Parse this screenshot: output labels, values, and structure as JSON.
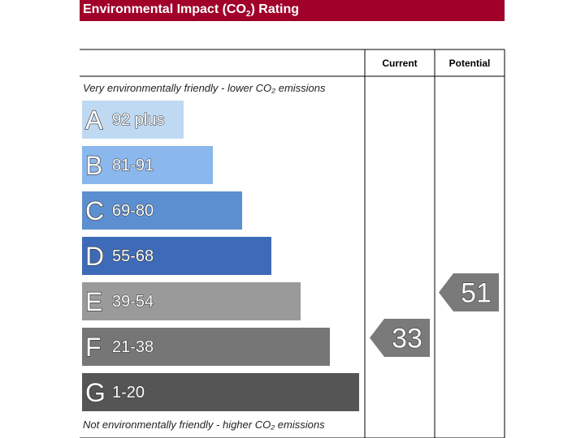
{
  "title": {
    "prefix": "Environmental Impact (CO",
    "sub": "2",
    "suffix": ") Rating"
  },
  "chart_data": {
    "type": "bar",
    "columns": [
      "Current",
      "Potential"
    ],
    "top_note": "Very environmentally friendly - lower CO₂ emissions",
    "bottom_note": "Not environmentally friendly - higher CO₂ emissions",
    "bands": [
      {
        "letter": "A",
        "range": "92 plus",
        "min": 92,
        "max": 100,
        "color": "#bfd9f2"
      },
      {
        "letter": "B",
        "range": "81-91",
        "min": 81,
        "max": 91,
        "color": "#8ab7ec"
      },
      {
        "letter": "C",
        "range": "69-80",
        "min": 69,
        "max": 80,
        "color": "#5b8fd0"
      },
      {
        "letter": "D",
        "range": "55-68",
        "min": 55,
        "max": 68,
        "color": "#3d6bb8"
      },
      {
        "letter": "E",
        "range": "39-54",
        "min": 39,
        "max": 54,
        "color": "#9a9a9a"
      },
      {
        "letter": "F",
        "range": "21-38",
        "min": 21,
        "max": 38,
        "color": "#767676"
      },
      {
        "letter": "G",
        "range": "1-20",
        "min": 1,
        "max": 20,
        "color": "#555555"
      }
    ],
    "current": 33,
    "potential": 51,
    "marker_color": "#7a7a7a"
  }
}
